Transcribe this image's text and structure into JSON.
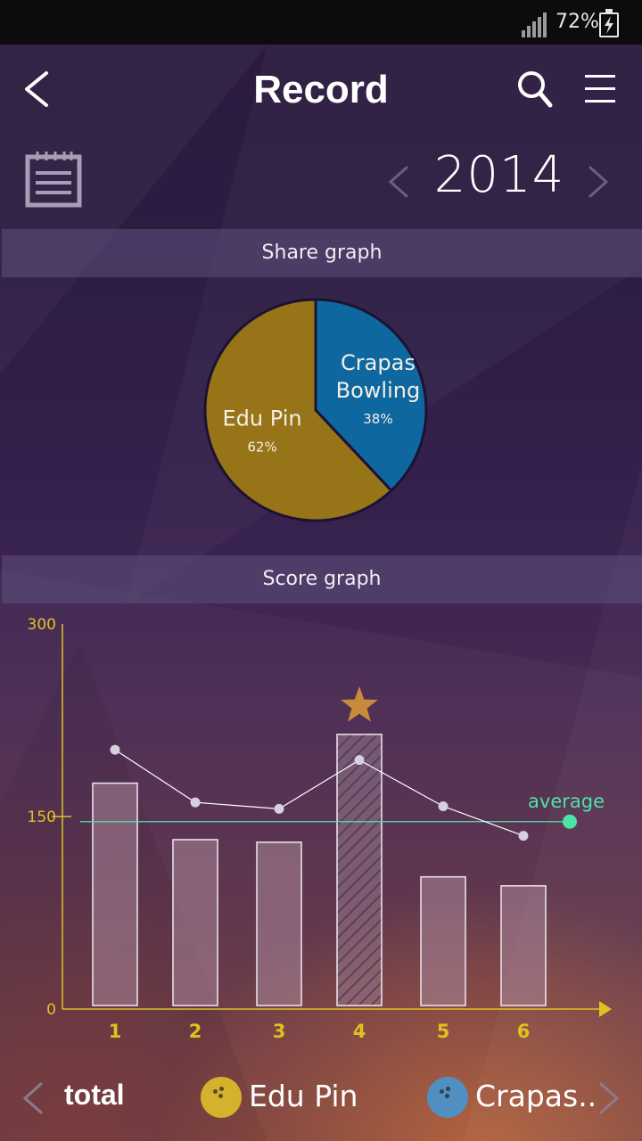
{
  "status_bar": {
    "battery_text": "72%"
  },
  "header": {
    "title": "Record"
  },
  "year_selector": {
    "year": "2014"
  },
  "share_graph": {
    "title": "Share graph"
  },
  "score_graph": {
    "title": "Score graph"
  },
  "colors": {
    "edu_pin": "#977417",
    "crapas_bowling": "#0f679f",
    "axis": "#e0c21f",
    "average_line": "#4ee3a6",
    "star": "#c78b3a"
  },
  "chart_data": [
    {
      "type": "pie",
      "title": "Share graph",
      "slices": [
        {
          "name": "Crapas Bowling",
          "label_lines": [
            "Crapas",
            "Bowling"
          ],
          "value": 38,
          "value_label": "38%",
          "color": "#0f679f"
        },
        {
          "name": "Edu Pin",
          "label_lines": [
            "Edu Pin"
          ],
          "value": 62,
          "value_label": "62%",
          "color": "#977417"
        }
      ]
    },
    {
      "type": "bar",
      "title": "Score graph",
      "categories": [
        "1",
        "2",
        "3",
        "4",
        "5",
        "6"
      ],
      "ylim": [
        0,
        300
      ],
      "ytick_labels": [
        "0",
        "150",
        "300"
      ],
      "series": [
        {
          "kind": "bar",
          "values": [
            176,
            132,
            130,
            214,
            103,
            96
          ]
        },
        {
          "kind": "line",
          "values": [
            202,
            161,
            156,
            194,
            158,
            135
          ]
        }
      ],
      "highlight_index": 3,
      "average": {
        "label": "average",
        "value": 146
      }
    }
  ],
  "bottom_nav": {
    "total_label": "total",
    "tabs": [
      {
        "label": "Edu Pin",
        "icon": "bowling-ball-icon",
        "color": "#d4b22c"
      },
      {
        "label": "Crapas..",
        "icon": "bowling-ball-icon",
        "color": "#4f8fc2"
      }
    ]
  }
}
